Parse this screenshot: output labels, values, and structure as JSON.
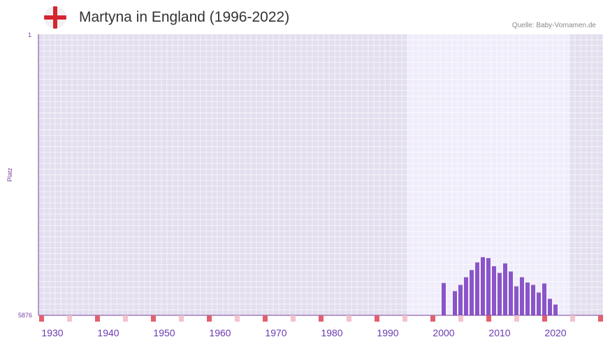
{
  "header": {
    "title": "Martyna in England (1996-2022)",
    "source": "Quelle: Baby-Vornamen.de",
    "flag_icon": "england-flag-icon"
  },
  "chart_data": {
    "type": "bar",
    "title": "Martyna in England (1996-2022)",
    "ylabel": "Platz",
    "ymin_label": "1",
    "ymax_label": "5876",
    "ylim": [
      1,
      5876
    ],
    "y_inverted": true,
    "xlim": [
      1928,
      2029
    ],
    "x_ticks": [
      1930,
      1940,
      1950,
      1960,
      1970,
      1980,
      1990,
      2000,
      2010,
      2020
    ],
    "highlight_range": [
      1996,
      2022
    ],
    "colors": {
      "bar": "#8a55c8",
      "outside_bg": "#e3dfee",
      "inside_bg": "#f0edfa",
      "axis": "#7b3fa0",
      "marker_major": "#e06070",
      "marker_minor": "#f4c4cc",
      "tick_text": "#6a3ab0"
    },
    "series": [
      {
        "name": "Martyna",
        "x": [
          2000,
          2002,
          2003,
          2004,
          2005,
          2006,
          2007,
          2008,
          2009,
          2010,
          2011,
          2012,
          2013,
          2014,
          2015,
          2016,
          2017,
          2018,
          2019,
          2020
        ],
        "values": [
          5200,
          5370,
          5240,
          5080,
          4930,
          4770,
          4660,
          4680,
          4850,
          4990,
          4790,
          4960,
          5270,
          5080,
          5190,
          5240,
          5400,
          5210,
          5530,
          5650
        ]
      }
    ]
  }
}
